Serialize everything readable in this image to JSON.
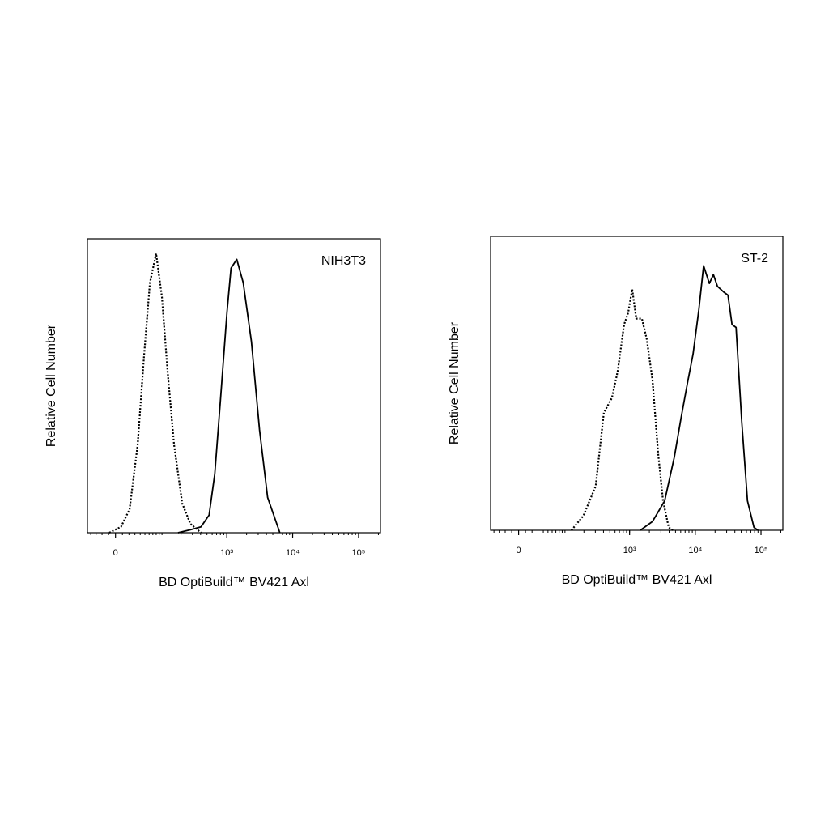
{
  "chart_data": [
    {
      "type": "line",
      "xscale": "biexponential",
      "annotation": "NIH3T3",
      "xlabel": "BD OptiBuild™ BV421 Axl",
      "ylabel": "Relative Cell Number",
      "xlim": [
        -47,
        215000
      ],
      "ylim": [
        0,
        100
      ],
      "xticks": [
        0,
        {
          "value": 1000,
          "label": "10³"
        },
        {
          "value": 10000,
          "label": "10⁴"
        },
        {
          "value": 100000,
          "label": "10⁵"
        }
      ],
      "series": [
        {
          "style": "dotted",
          "color": "#000000",
          "x": [
            -9,
            8,
            21,
            35,
            48,
            62,
            80,
            100,
            123,
            156,
            209,
            279,
            405
          ],
          "values": [
            0,
            2,
            8,
            30,
            60,
            85,
            95,
            80,
            55,
            30,
            10,
            3,
            0
          ]
        },
        {
          "style": "solid",
          "color": "#000000",
          "x": [
            180,
            279,
            405,
            538,
            657,
            802,
            1007,
            1162,
            1417,
            1780,
            2365,
            3141,
            4173,
            6396
          ],
          "values": [
            0,
            1,
            2,
            6,
            20,
            45,
            75,
            90,
            93,
            85,
            65,
            35,
            12,
            0
          ]
        }
      ]
    },
    {
      "type": "line",
      "xscale": "biexponential",
      "annotation": "ST-2",
      "xlabel": "BD OptiBuild™ BV421 Axl",
      "ylabel": "Relative Cell Number",
      "xlim": [
        -47,
        215000
      ],
      "ylim": [
        0,
        100
      ],
      "xticks": [
        0,
        {
          "value": 1000,
          "label": "10³"
        },
        {
          "value": 10000,
          "label": "10⁴"
        },
        {
          "value": 100000,
          "label": "10⁵"
        }
      ],
      "series": [
        {
          "style": "dotted",
          "color": "#000000",
          "x": [
            127,
            197,
            304,
            405,
            538,
            657,
            826,
            952,
            1097,
            1264,
            1543,
            1829,
            2233,
            2725,
            3233,
            3946,
            4547
          ],
          "values": [
            0,
            5,
            15,
            40,
            45,
            54,
            70,
            74,
            82,
            72,
            72,
            65,
            51,
            26,
            10,
            1,
            0
          ]
        },
        {
          "style": "solid",
          "color": "#000000",
          "x": [
            1457,
            2233,
            3420,
            4813,
            6041,
            7585,
            9251,
            11310,
            13400,
            16360,
            18860,
            21730,
            27280,
            31440,
            36240,
            41770,
            50960,
            62180,
            78040,
            90030
          ],
          "values": [
            0,
            3,
            10,
            25,
            38,
            50,
            60,
            75,
            90,
            84,
            87,
            83,
            81,
            80,
            70,
            69,
            37,
            10,
            1,
            0
          ]
        }
      ]
    }
  ]
}
